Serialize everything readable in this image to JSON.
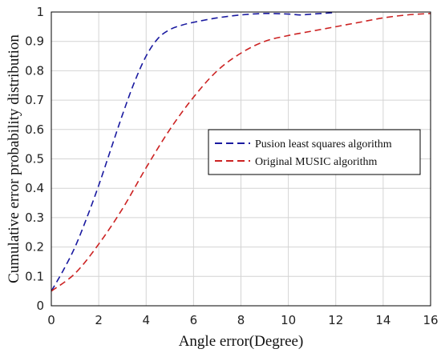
{
  "chart_data": {
    "type": "line",
    "title": "",
    "xlabel": "Angle error(Degree)",
    "ylabel": "Cumulative error probability distribution",
    "xlim": [
      0,
      16
    ],
    "ylim": [
      0,
      1
    ],
    "xticks": [
      0,
      2,
      4,
      6,
      8,
      10,
      12,
      14,
      16
    ],
    "yticks": [
      0,
      0.1,
      0.2,
      0.3,
      0.4,
      0.5,
      0.6,
      0.7,
      0.8,
      0.9,
      1
    ],
    "grid": true,
    "legend_position": "right",
    "series": [
      {
        "name": "Pusion least squares algorithm",
        "color": "#1a1aa0",
        "line_style": "dashed",
        "x": [
          0,
          0.5,
          1,
          1.5,
          2,
          2.5,
          3,
          3.5,
          4,
          4.5,
          5,
          5.5,
          6,
          7,
          8,
          9,
          10,
          10.5,
          11,
          12
        ],
        "y": [
          0.05,
          0.12,
          0.2,
          0.3,
          0.41,
          0.53,
          0.65,
          0.76,
          0.85,
          0.91,
          0.94,
          0.955,
          0.965,
          0.98,
          0.99,
          0.995,
          0.993,
          0.99,
          0.993,
          0.998
        ]
      },
      {
        "name": "Original MUSIC algorithm",
        "color": "#cc2222",
        "line_style": "dashed",
        "x": [
          0,
          1,
          2,
          3,
          4,
          5,
          6,
          7,
          8,
          9,
          10,
          11,
          12,
          13,
          14,
          15,
          16
        ],
        "y": [
          0.05,
          0.11,
          0.21,
          0.33,
          0.47,
          0.6,
          0.71,
          0.8,
          0.86,
          0.9,
          0.92,
          0.935,
          0.95,
          0.965,
          0.98,
          0.99,
          0.995
        ]
      }
    ]
  }
}
